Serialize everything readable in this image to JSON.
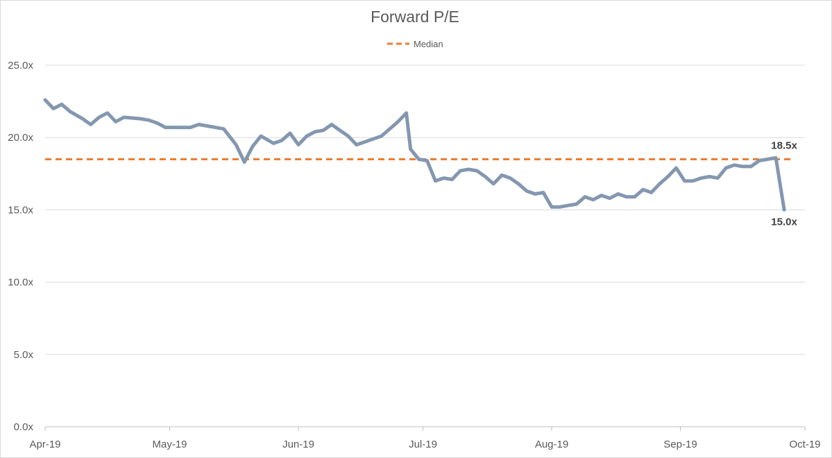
{
  "chart_data": {
    "type": "line",
    "title": "Forward P/E",
    "xlabel": "",
    "ylabel": "",
    "ylim": [
      0,
      25
    ],
    "yticks": [
      0,
      5,
      10,
      15,
      20,
      25
    ],
    "ytick_labels": [
      "0.0x",
      "5.0x",
      "10.0x",
      "15.0x",
      "20.0x",
      "25.0x"
    ],
    "xlim": [
      "2019-04-01",
      "2019-10-01"
    ],
    "xticks": [
      "2019-04-01",
      "2019-05-01",
      "2019-06-01",
      "2019-07-01",
      "2019-08-01",
      "2019-09-01",
      "2019-10-01"
    ],
    "xtick_labels": [
      "Apr-19",
      "May-19",
      "Jun-19",
      "Jul-19",
      "Aug-19",
      "Sep-19",
      "Oct-19"
    ],
    "grid": "horizontal",
    "legend": {
      "position": "top-center",
      "entries": [
        "Median"
      ]
    },
    "colors": {
      "series": "#8497b0",
      "median": "#ed7d31",
      "grid": "#d9d9d9",
      "axis": "#bfbfbf"
    },
    "series": [
      {
        "x": [
          "2019-04-01",
          "2019-04-03",
          "2019-04-05",
          "2019-04-07",
          "2019-04-10",
          "2019-04-12",
          "2019-04-14",
          "2019-04-16",
          "2019-04-18",
          "2019-04-20",
          "2019-04-24",
          "2019-04-26",
          "2019-04-28",
          "2019-04-30",
          "2019-05-02",
          "2019-05-06",
          "2019-05-08",
          "2019-05-10",
          "2019-05-12",
          "2019-05-14",
          "2019-05-17",
          "2019-05-19",
          "2019-05-21",
          "2019-05-23",
          "2019-05-26",
          "2019-05-28",
          "2019-05-30",
          "2019-06-01",
          "2019-06-03",
          "2019-06-05",
          "2019-06-07",
          "2019-06-09",
          "2019-06-11",
          "2019-06-13",
          "2019-06-15",
          "2019-06-17",
          "2019-06-19",
          "2019-06-21",
          "2019-06-23",
          "2019-06-25",
          "2019-06-27",
          "2019-06-28",
          "2019-06-30",
          "2019-07-02",
          "2019-07-04",
          "2019-07-06",
          "2019-07-08",
          "2019-07-10",
          "2019-07-12",
          "2019-07-14",
          "2019-07-16",
          "2019-07-18",
          "2019-07-20",
          "2019-07-22",
          "2019-07-24",
          "2019-07-26",
          "2019-07-28",
          "2019-07-30",
          "2019-08-01",
          "2019-08-03",
          "2019-08-05",
          "2019-08-07",
          "2019-08-09",
          "2019-08-11",
          "2019-08-13",
          "2019-08-15",
          "2019-08-17",
          "2019-08-19",
          "2019-08-21",
          "2019-08-23",
          "2019-08-25",
          "2019-08-27",
          "2019-08-29",
          "2019-08-31",
          "2019-09-02",
          "2019-09-04",
          "2019-09-06",
          "2019-09-08",
          "2019-09-10",
          "2019-09-12",
          "2019-09-14",
          "2019-09-16",
          "2019-09-18",
          "2019-09-20",
          "2019-09-22",
          "2019-09-24",
          "2019-09-26"
        ],
        "values": [
          22.6,
          22.0,
          22.3,
          21.8,
          21.3,
          20.9,
          21.4,
          21.7,
          21.1,
          21.4,
          21.3,
          21.2,
          21.0,
          20.7,
          20.7,
          20.7,
          20.9,
          20.8,
          20.7,
          20.6,
          19.5,
          18.3,
          19.4,
          20.1,
          19.6,
          19.8,
          20.3,
          19.5,
          20.1,
          20.4,
          20.5,
          20.9,
          20.5,
          20.1,
          19.5,
          19.7,
          19.9,
          20.1,
          20.6,
          21.1,
          21.7,
          19.2,
          18.5,
          18.4,
          17.0,
          17.2,
          17.1,
          17.7,
          17.8,
          17.7,
          17.3,
          16.8,
          17.4,
          17.2,
          16.8,
          16.3,
          16.1,
          16.2,
          15.2,
          15.2,
          15.3,
          15.4,
          15.9,
          15.7,
          16.0,
          15.8,
          16.1,
          15.9,
          15.9,
          16.4,
          16.2,
          16.8,
          17.3,
          17.9,
          17.0,
          17.0,
          17.2,
          17.3,
          17.2,
          17.9,
          18.1,
          18.0,
          18.0,
          18.4,
          18.5,
          18.6,
          15.0
        ]
      }
    ],
    "reference_lines": [
      {
        "name": "Median",
        "value": 18.5,
        "style": "dashed"
      }
    ],
    "annotations": [
      {
        "text": "18.5x",
        "x": "2019-09-26",
        "y": 18.5
      },
      {
        "text": "15.0x",
        "x": "2019-09-26",
        "y": 15.0
      }
    ]
  }
}
